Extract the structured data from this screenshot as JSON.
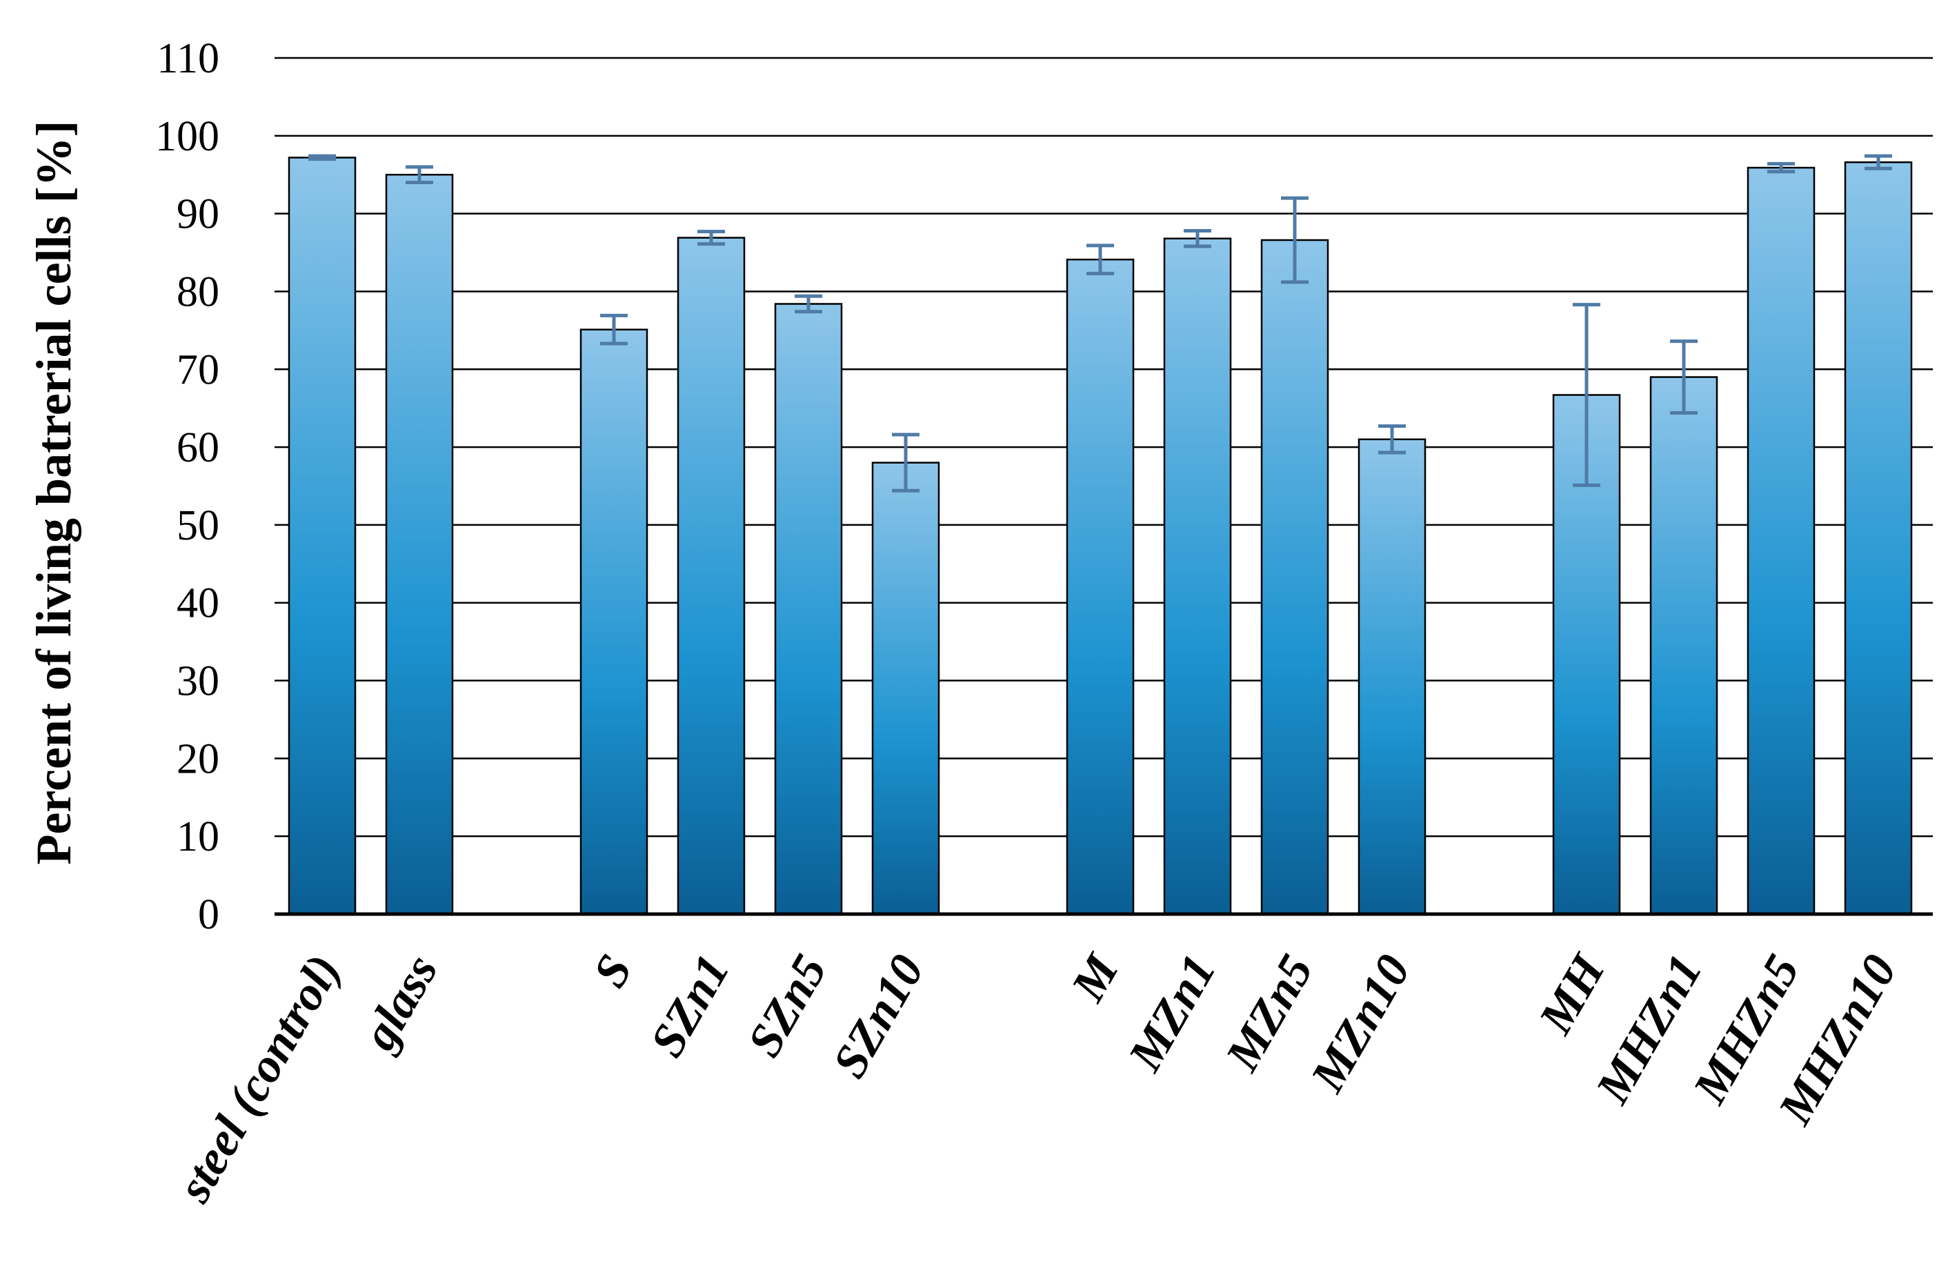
{
  "chart_data": {
    "type": "bar",
    "title": "",
    "xlabel": "",
    "ylabel": "Percent of living batrerial cells [%]",
    "ylim": [
      0,
      110
    ],
    "yticks": [
      0,
      10,
      20,
      30,
      40,
      50,
      60,
      70,
      80,
      90,
      100,
      110
    ],
    "grid": true,
    "legend": "none",
    "bar_color_top": "#8fc6ea",
    "bar_color_mid": "#1c93d0",
    "bar_color_bottom": "#0a5e93",
    "error_bar_color": "#4f7ba6",
    "groups": [
      {
        "categories": [
          {
            "label": "steel (control)",
            "value": 97.2,
            "error": 0.2
          },
          {
            "label": "glass",
            "value": 95.0,
            "error": 1.0
          }
        ]
      },
      {
        "categories": [
          {
            "label": "S",
            "value": 75.1,
            "error": 1.8
          },
          {
            "label": "SZn1",
            "value": 86.9,
            "error": 0.8
          },
          {
            "label": "SZn5",
            "value": 78.4,
            "error": 1.0
          },
          {
            "label": "SZn10",
            "value": 58.0,
            "error": 3.6
          }
        ]
      },
      {
        "categories": [
          {
            "label": "M",
            "value": 84.1,
            "error": 1.8
          },
          {
            "label": "MZn1",
            "value": 86.8,
            "error": 1.0
          },
          {
            "label": "MZn5",
            "value": 86.6,
            "error": 5.4
          },
          {
            "label": "MZn10",
            "value": 61.0,
            "error": 1.7
          }
        ]
      },
      {
        "categories": [
          {
            "label": "MH",
            "value": 66.7,
            "error": 11.6
          },
          {
            "label": "MHZn1",
            "value": 69.0,
            "error": 4.6
          },
          {
            "label": "MHZn5",
            "value": 95.9,
            "error": 0.5
          },
          {
            "label": "MHZn10",
            "value": 96.6,
            "error": 0.8
          }
        ]
      }
    ]
  }
}
